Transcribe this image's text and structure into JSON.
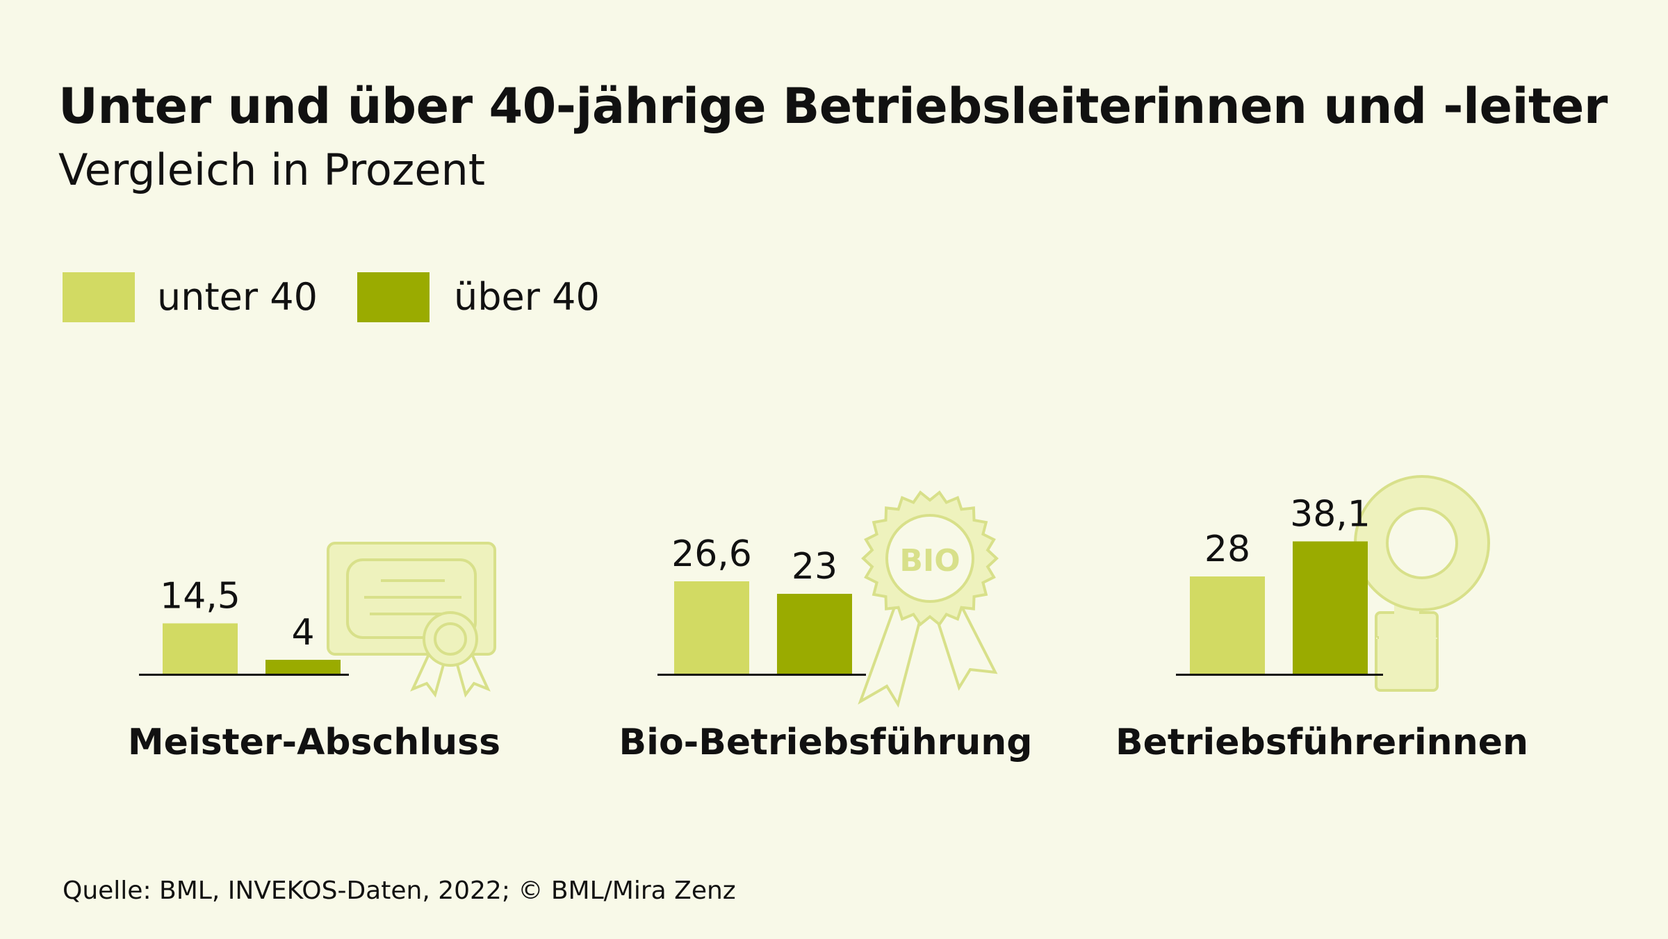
{
  "title": "Unter und über 40-jährige Betriebsleiterinnen und -leiter",
  "subtitle": "Vergleich in Prozent",
  "legend": [
    {
      "label": "unter 40",
      "color": "#d2da63"
    },
    {
      "label": "über 40",
      "color": "#9aab00"
    }
  ],
  "source": "Quelle: BML, INVEKOS-Daten, 2022;   © BML/Mira Zenz",
  "chart_data": {
    "type": "bar",
    "title": "Unter und über 40-jährige Betriebsleiterinnen und -leiter",
    "subtitle": "Vergleich in Prozent",
    "categories": [
      "Meister-Abschluss",
      "Bio-Betriebsführung",
      "Betriebsführerinnen"
    ],
    "series": [
      {
        "name": "unter 40",
        "values": [
          14.5,
          26.6,
          28
        ],
        "labels": [
          "14,5",
          "26,6",
          "28"
        ]
      },
      {
        "name": "über 40",
        "values": [
          4,
          23,
          38.1
        ],
        "labels": [
          "4",
          "23",
          "38,1"
        ]
      }
    ],
    "legend_position": "top-left",
    "grid": false,
    "icons": [
      "certificate-icon",
      "bio-rosette-icon",
      "venus-icon"
    ],
    "icon_texts": {
      "bio_badge": "BIO"
    }
  }
}
